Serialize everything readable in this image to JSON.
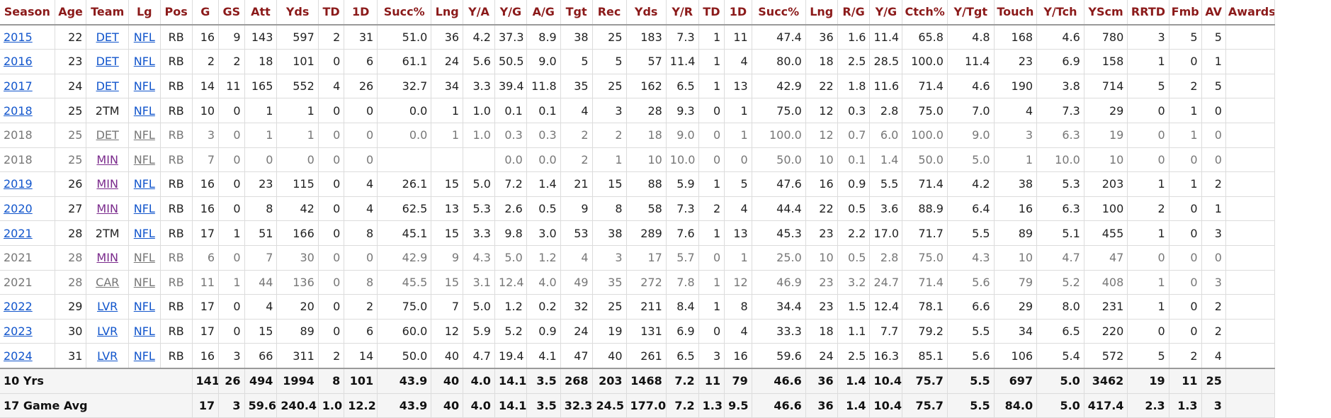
{
  "headers": [
    "Season",
    "Age",
    "Team",
    "Lg",
    "Pos",
    "G",
    "GS",
    "Att",
    "Yds",
    "TD",
    "1D",
    "Succ%",
    "Lng",
    "Y/A",
    "Y/G",
    "A/G",
    "Tgt",
    "Rec",
    "Yds",
    "Y/R",
    "TD",
    "1D",
    "Succ%",
    "Lng",
    "R/G",
    "Y/G",
    "Ctch%",
    "Y/Tgt",
    "Touch",
    "Y/Tch",
    "YScm",
    "RRTD",
    "Fmb",
    "AV",
    "Awards"
  ],
  "rows": [
    {
      "season": "2015",
      "age": "22",
      "team": "DET",
      "lg": "NFL",
      "pos": "RB",
      "stats": [
        "16",
        "9",
        "143",
        "597",
        "2",
        "31",
        "51.0",
        "36",
        "4.2",
        "37.3",
        "8.9",
        "38",
        "25",
        "183",
        "7.3",
        "1",
        "11",
        "47.4",
        "36",
        "1.6",
        "11.4",
        "65.8",
        "4.8",
        "168",
        "4.6",
        "780",
        "3",
        "5",
        "5"
      ],
      "awards": "",
      "link": true,
      "team_link": true,
      "visited": false
    },
    {
      "season": "2016",
      "age": "23",
      "team": "DET",
      "lg": "NFL",
      "pos": "RB",
      "stats": [
        "2",
        "2",
        "18",
        "101",
        "0",
        "6",
        "61.1",
        "24",
        "5.6",
        "50.5",
        "9.0",
        "5",
        "5",
        "57",
        "11.4",
        "1",
        "4",
        "80.0",
        "18",
        "2.5",
        "28.5",
        "100.0",
        "11.4",
        "23",
        "6.9",
        "158",
        "1",
        "0",
        "1"
      ],
      "awards": "",
      "link": true,
      "team_link": true,
      "visited": false
    },
    {
      "season": "2017",
      "age": "24",
      "team": "DET",
      "lg": "NFL",
      "pos": "RB",
      "stats": [
        "14",
        "11",
        "165",
        "552",
        "4",
        "26",
        "32.7",
        "34",
        "3.3",
        "39.4",
        "11.8",
        "35",
        "25",
        "162",
        "6.5",
        "1",
        "13",
        "42.9",
        "22",
        "1.8",
        "11.6",
        "71.4",
        "4.6",
        "190",
        "3.8",
        "714",
        "5",
        "2",
        "5"
      ],
      "awards": "",
      "link": true,
      "team_link": true,
      "visited": false
    },
    {
      "season": "2018",
      "age": "25",
      "team": "2TM",
      "lg": "NFL",
      "pos": "RB",
      "stats": [
        "10",
        "0",
        "1",
        "1",
        "0",
        "0",
        "0.0",
        "1",
        "1.0",
        "0.1",
        "0.1",
        "4",
        "3",
        "28",
        "9.3",
        "0",
        "1",
        "75.0",
        "12",
        "0.3",
        "2.8",
        "75.0",
        "7.0",
        "4",
        "7.3",
        "29",
        "0",
        "1",
        "0"
      ],
      "awards": "",
      "link": true,
      "team_link": false,
      "visited": false
    },
    {
      "season": "2018",
      "age": "25",
      "team": "DET",
      "lg": "NFL",
      "pos": "RB",
      "stats": [
        "3",
        "0",
        "1",
        "1",
        "0",
        "0",
        "0.0",
        "1",
        "1.0",
        "0.3",
        "0.3",
        "2",
        "2",
        "18",
        "9.0",
        "0",
        "1",
        "100.0",
        "12",
        "0.7",
        "6.0",
        "100.0",
        "9.0",
        "3",
        "6.3",
        "19",
        "0",
        "1",
        "0"
      ],
      "awards": "",
      "link": false,
      "team_link": true,
      "visited": false
    },
    {
      "season": "2018",
      "age": "25",
      "team": "MIN",
      "lg": "NFL",
      "pos": "RB",
      "stats": [
        "7",
        "0",
        "0",
        "0",
        "0",
        "0",
        "",
        "",
        "",
        "0.0",
        "0.0",
        "2",
        "1",
        "10",
        "10.0",
        "0",
        "0",
        "50.0",
        "10",
        "0.1",
        "1.4",
        "50.0",
        "5.0",
        "1",
        "10.0",
        "10",
        "0",
        "0",
        "0"
      ],
      "awards": "",
      "link": false,
      "team_link": true,
      "visited": true
    },
    {
      "season": "2019",
      "age": "26",
      "team": "MIN",
      "lg": "NFL",
      "pos": "RB",
      "stats": [
        "16",
        "0",
        "23",
        "115",
        "0",
        "4",
        "26.1",
        "15",
        "5.0",
        "7.2",
        "1.4",
        "21",
        "15",
        "88",
        "5.9",
        "1",
        "5",
        "47.6",
        "16",
        "0.9",
        "5.5",
        "71.4",
        "4.2",
        "38",
        "5.3",
        "203",
        "1",
        "1",
        "2"
      ],
      "awards": "",
      "link": true,
      "team_link": true,
      "visited": true
    },
    {
      "season": "2020",
      "age": "27",
      "team": "MIN",
      "lg": "NFL",
      "pos": "RB",
      "stats": [
        "16",
        "0",
        "8",
        "42",
        "0",
        "4",
        "62.5",
        "13",
        "5.3",
        "2.6",
        "0.5",
        "9",
        "8",
        "58",
        "7.3",
        "2",
        "4",
        "44.4",
        "22",
        "0.5",
        "3.6",
        "88.9",
        "6.4",
        "16",
        "6.3",
        "100",
        "2",
        "0",
        "1"
      ],
      "awards": "",
      "link": true,
      "team_link": true,
      "visited": true
    },
    {
      "season": "2021",
      "age": "28",
      "team": "2TM",
      "lg": "NFL",
      "pos": "RB",
      "stats": [
        "17",
        "1",
        "51",
        "166",
        "0",
        "8",
        "45.1",
        "15",
        "3.3",
        "9.8",
        "3.0",
        "53",
        "38",
        "289",
        "7.6",
        "1",
        "13",
        "45.3",
        "23",
        "2.2",
        "17.0",
        "71.7",
        "5.5",
        "89",
        "5.1",
        "455",
        "1",
        "0",
        "3"
      ],
      "awards": "",
      "link": true,
      "team_link": false,
      "visited": false
    },
    {
      "season": "2021",
      "age": "28",
      "team": "MIN",
      "lg": "NFL",
      "pos": "RB",
      "stats": [
        "6",
        "0",
        "7",
        "30",
        "0",
        "0",
        "42.9",
        "9",
        "4.3",
        "5.0",
        "1.2",
        "4",
        "3",
        "17",
        "5.7",
        "0",
        "1",
        "25.0",
        "10",
        "0.5",
        "2.8",
        "75.0",
        "4.3",
        "10",
        "4.7",
        "47",
        "0",
        "0",
        "0"
      ],
      "awards": "",
      "link": false,
      "team_link": true,
      "visited": true
    },
    {
      "season": "2021",
      "age": "28",
      "team": "CAR",
      "lg": "NFL",
      "pos": "RB",
      "stats": [
        "11",
        "1",
        "44",
        "136",
        "0",
        "8",
        "45.5",
        "15",
        "3.1",
        "12.4",
        "4.0",
        "49",
        "35",
        "272",
        "7.8",
        "1",
        "12",
        "46.9",
        "23",
        "3.2",
        "24.7",
        "71.4",
        "5.6",
        "79",
        "5.2",
        "408",
        "1",
        "0",
        "3"
      ],
      "awards": "",
      "link": false,
      "team_link": true,
      "visited": false
    },
    {
      "season": "2022",
      "age": "29",
      "team": "LVR",
      "lg": "NFL",
      "pos": "RB",
      "stats": [
        "17",
        "0",
        "4",
        "20",
        "0",
        "2",
        "75.0",
        "7",
        "5.0",
        "1.2",
        "0.2",
        "32",
        "25",
        "211",
        "8.4",
        "1",
        "8",
        "34.4",
        "23",
        "1.5",
        "12.4",
        "78.1",
        "6.6",
        "29",
        "8.0",
        "231",
        "1",
        "0",
        "2"
      ],
      "awards": "",
      "link": true,
      "team_link": true,
      "visited": false
    },
    {
      "season": "2023",
      "age": "30",
      "team": "LVR",
      "lg": "NFL",
      "pos": "RB",
      "stats": [
        "17",
        "0",
        "15",
        "89",
        "0",
        "6",
        "60.0",
        "12",
        "5.9",
        "5.2",
        "0.9",
        "24",
        "19",
        "131",
        "6.9",
        "0",
        "4",
        "33.3",
        "18",
        "1.1",
        "7.7",
        "79.2",
        "5.5",
        "34",
        "6.5",
        "220",
        "0",
        "0",
        "2"
      ],
      "awards": "",
      "link": true,
      "team_link": true,
      "visited": false
    },
    {
      "season": "2024",
      "age": "31",
      "team": "LVR",
      "lg": "NFL",
      "pos": "RB",
      "stats": [
        "16",
        "3",
        "66",
        "311",
        "2",
        "14",
        "50.0",
        "40",
        "4.7",
        "19.4",
        "4.1",
        "47",
        "40",
        "261",
        "6.5",
        "3",
        "16",
        "59.6",
        "24",
        "2.5",
        "16.3",
        "85.1",
        "5.6",
        "106",
        "5.4",
        "572",
        "5",
        "2",
        "4"
      ],
      "awards": "",
      "link": true,
      "team_link": true,
      "visited": false
    }
  ],
  "totals": [
    {
      "label": "10 Yrs",
      "stats": [
        "141",
        "26",
        "494",
        "1994",
        "8",
        "101",
        "43.9",
        "40",
        "4.0",
        "14.1",
        "3.5",
        "268",
        "203",
        "1468",
        "7.2",
        "11",
        "79",
        "46.6",
        "36",
        "1.4",
        "10.4",
        "75.7",
        "5.5",
        "697",
        "5.0",
        "3462",
        "19",
        "11",
        "25"
      ],
      "awards": ""
    },
    {
      "label": "17 Game Avg",
      "stats": [
        "17",
        "3",
        "59.6",
        "240.4",
        "1.0",
        "12.2",
        "43.9",
        "40",
        "4.0",
        "14.1",
        "3.5",
        "32.3",
        "24.5",
        "177.0",
        "7.2",
        "1.3",
        "9.5",
        "46.6",
        "36",
        "1.4",
        "10.4",
        "75.7",
        "5.5",
        "84.0",
        "5.0",
        "417.4",
        "2.3",
        "1.3",
        "3"
      ],
      "awards": ""
    }
  ]
}
